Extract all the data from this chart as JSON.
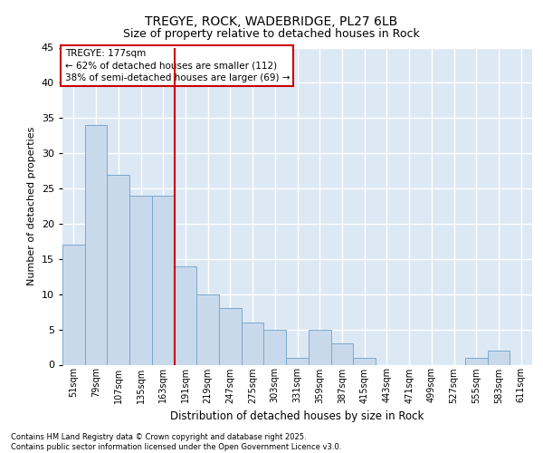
{
  "title1": "TREGYE, ROCK, WADEBRIDGE, PL27 6LB",
  "title2": "Size of property relative to detached houses in Rock",
  "xlabel": "Distribution of detached houses by size in Rock",
  "ylabel": "Number of detached properties",
  "categories": [
    "51sqm",
    "79sqm",
    "107sqm",
    "135sqm",
    "163sqm",
    "191sqm",
    "219sqm",
    "247sqm",
    "275sqm",
    "303sqm",
    "331sqm",
    "359sqm",
    "387sqm",
    "415sqm",
    "443sqm",
    "471sqm",
    "499sqm",
    "527sqm",
    "555sqm",
    "583sqm",
    "611sqm"
  ],
  "values": [
    17,
    34,
    27,
    24,
    24,
    14,
    10,
    8,
    6,
    5,
    1,
    5,
    3,
    1,
    0,
    0,
    0,
    0,
    1,
    2,
    0
  ],
  "bar_color": "#c9d9ec",
  "bar_edge_color": "#7aa8cc",
  "ylim": [
    0,
    45
  ],
  "yticks": [
    0,
    5,
    10,
    15,
    20,
    25,
    30,
    35,
    40,
    45
  ],
  "property_label": "TREGYE: 177sqm",
  "vline_x_index": 4.5,
  "annotation_line1": "← 62% of detached houses are smaller (112)",
  "annotation_line2": "38% of semi-detached houses are larger (69) →",
  "annotation_box_color": "#ffffff",
  "annotation_box_edge": "#cc0000",
  "vline_color": "#cc0000",
  "background_color": "#dde8f5",
  "grid_color": "#ffffff",
  "footer1": "Contains HM Land Registry data © Crown copyright and database right 2025.",
  "footer2": "Contains public sector information licensed under the Open Government Licence v3.0."
}
